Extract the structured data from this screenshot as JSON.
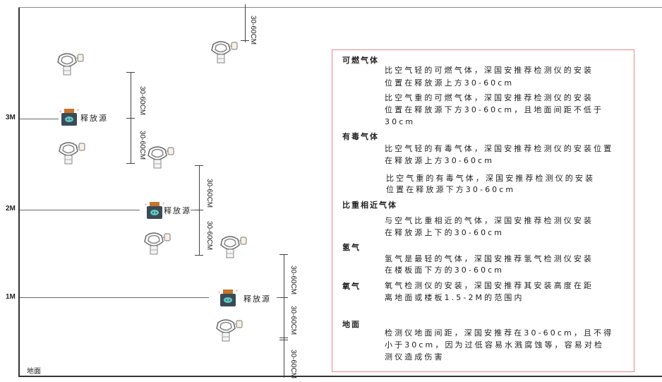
{
  "axis": {
    "levels": [
      "3M",
      "2M",
      "1M"
    ],
    "ground_label": "地面"
  },
  "source_label": "释放源",
  "dimension_label": "30-60CM",
  "panel": {
    "sections": [
      {
        "heading": "可燃气体",
        "paragraphs": [
          [
            "比空气轻的可燃气体，深国安推荐检测仪的安装",
            "位置在释放源上方30-60cm"
          ],
          [
            "比空气重的可燃气体，深国安推荐检测仪的安装",
            "位置在释放源下方30-60cm，且地面间距不低于",
            "30cm"
          ]
        ]
      },
      {
        "heading": "有毒气体",
        "paragraphs": [
          [
            "比空气轻的有毒气体，深国安推荐检测仪的安装位置",
            "在释放源上方30-60cm"
          ],
          [
            "比空气重的有毒气体，深国安推荐检测仪的安装",
            "位置在释放源下方30-60cm"
          ]
        ]
      },
      {
        "heading": "比重相近气体",
        "paragraphs": [
          [
            "与空气比重相近的气体，深国安推荐检测仪安装",
            "在释放源上下的30-60cm"
          ]
        ]
      },
      {
        "heading": "氢气",
        "paragraphs": [
          [
            "氢气是最轻的气体，深国安推荐氢气检测仪安装",
            "在楼板面下方的30-60cm"
          ]
        ]
      },
      {
        "heading": "氧气",
        "paragraphs": [
          [
            "氧气检测仪的安装，深国安推荐其安装高度在距",
            "离地面或楼板1.5-2M的范围内"
          ]
        ]
      },
      {
        "heading": "地面",
        "paragraphs": [
          [
            "检测仪地面间距，深国安推荐在30-60cm，且不得",
            "小于30cm，因为过低容易水溅腐蚀等，容易对检",
            "测仪造成伤害"
          ]
        ]
      }
    ]
  },
  "colors": {
    "panel_border": "#e8898d",
    "source_body": "#3b4a57",
    "source_face": "#5fc8c0",
    "source_cap": "#c8742a"
  }
}
